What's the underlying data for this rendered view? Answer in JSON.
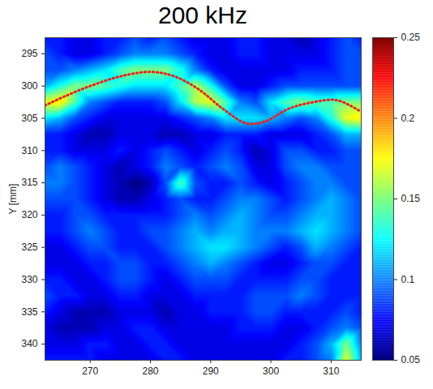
{
  "chart_data": {
    "type": "heatmap",
    "title": "200 kHz",
    "y_label": "Y [mm]",
    "color": "jet",
    "x": [
      262.5,
      265,
      267.5,
      270,
      272.5,
      275,
      277.5,
      280,
      282.5,
      285,
      287.5,
      290,
      292.5,
      295,
      297.5,
      300,
      302.5,
      305,
      307.5,
      310,
      312.5,
      315
    ],
    "y": [
      292.5,
      295,
      297.5,
      300,
      302.5,
      305,
      307.5,
      310,
      312.5,
      315,
      317.5,
      320,
      322.5,
      325,
      327.5,
      330,
      332.5,
      335,
      337.5,
      340,
      342.5
    ],
    "values": [
      [
        0.08,
        0.08,
        0.07,
        0.07,
        0.08,
        0.08,
        0.09,
        0.08,
        0.09,
        0.08,
        0.07,
        0.07,
        0.07,
        0.08,
        0.08,
        0.07,
        0.07,
        0.06,
        0.07,
        0.08,
        0.09,
        0.08
      ],
      [
        0.09,
        0.08,
        0.07,
        0.07,
        0.08,
        0.09,
        0.1,
        0.1,
        0.1,
        0.09,
        0.08,
        0.07,
        0.07,
        0.08,
        0.08,
        0.07,
        0.07,
        0.07,
        0.07,
        0.08,
        0.09,
        0.09
      ],
      [
        0.09,
        0.09,
        0.1,
        0.11,
        0.12,
        0.14,
        0.15,
        0.15,
        0.15,
        0.13,
        0.1,
        0.08,
        0.07,
        0.07,
        0.07,
        0.07,
        0.07,
        0.08,
        0.08,
        0.08,
        0.09,
        0.09
      ],
      [
        0.11,
        0.13,
        0.15,
        0.15,
        0.14,
        0.13,
        0.12,
        0.12,
        0.12,
        0.14,
        0.16,
        0.13,
        0.09,
        0.07,
        0.07,
        0.08,
        0.09,
        0.09,
        0.09,
        0.09,
        0.09,
        0.09
      ],
      [
        0.17,
        0.18,
        0.14,
        0.1,
        0.09,
        0.08,
        0.08,
        0.08,
        0.09,
        0.12,
        0.16,
        0.17,
        0.14,
        0.1,
        0.09,
        0.12,
        0.14,
        0.15,
        0.14,
        0.14,
        0.15,
        0.15
      ],
      [
        0.12,
        0.11,
        0.09,
        0.08,
        0.07,
        0.07,
        0.07,
        0.07,
        0.07,
        0.08,
        0.09,
        0.1,
        0.12,
        0.12,
        0.12,
        0.11,
        0.1,
        0.09,
        0.1,
        0.13,
        0.17,
        0.18
      ],
      [
        0.08,
        0.08,
        0.07,
        0.06,
        0.06,
        0.07,
        0.07,
        0.07,
        0.06,
        0.06,
        0.07,
        0.07,
        0.08,
        0.08,
        0.08,
        0.07,
        0.07,
        0.07,
        0.08,
        0.09,
        0.11,
        0.11
      ],
      [
        0.08,
        0.08,
        0.07,
        0.07,
        0.07,
        0.08,
        0.07,
        0.08,
        0.09,
        0.08,
        0.07,
        0.08,
        0.09,
        0.08,
        0.06,
        0.07,
        0.09,
        0.09,
        0.08,
        0.08,
        0.09,
        0.09
      ],
      [
        0.09,
        0.1,
        0.09,
        0.08,
        0.07,
        0.06,
        0.07,
        0.08,
        0.1,
        0.09,
        0.08,
        0.09,
        0.1,
        0.09,
        0.07,
        0.07,
        0.09,
        0.1,
        0.1,
        0.09,
        0.09,
        0.09
      ],
      [
        0.1,
        0.1,
        0.09,
        0.08,
        0.07,
        0.06,
        0.05,
        0.06,
        0.09,
        0.14,
        0.09,
        0.08,
        0.08,
        0.09,
        0.08,
        0.07,
        0.08,
        0.09,
        0.1,
        0.1,
        0.09,
        0.09
      ],
      [
        0.09,
        0.09,
        0.09,
        0.08,
        0.07,
        0.06,
        0.06,
        0.07,
        0.08,
        0.09,
        0.08,
        0.08,
        0.09,
        0.1,
        0.1,
        0.09,
        0.08,
        0.09,
        0.1,
        0.11,
        0.1,
        0.09
      ],
      [
        0.08,
        0.08,
        0.09,
        0.09,
        0.08,
        0.08,
        0.08,
        0.08,
        0.08,
        0.09,
        0.1,
        0.09,
        0.1,
        0.11,
        0.1,
        0.09,
        0.09,
        0.1,
        0.11,
        0.11,
        0.1,
        0.09
      ],
      [
        0.08,
        0.08,
        0.09,
        0.1,
        0.09,
        0.08,
        0.08,
        0.09,
        0.09,
        0.1,
        0.11,
        0.1,
        0.11,
        0.11,
        0.1,
        0.1,
        0.1,
        0.11,
        0.12,
        0.11,
        0.1,
        0.09
      ],
      [
        0.07,
        0.07,
        0.08,
        0.09,
        0.09,
        0.08,
        0.08,
        0.08,
        0.09,
        0.1,
        0.11,
        0.12,
        0.12,
        0.11,
        0.1,
        0.09,
        0.08,
        0.09,
        0.11,
        0.1,
        0.09,
        0.08
      ],
      [
        0.07,
        0.07,
        0.07,
        0.08,
        0.08,
        0.09,
        0.09,
        0.08,
        0.08,
        0.09,
        0.1,
        0.11,
        0.1,
        0.09,
        0.08,
        0.07,
        0.07,
        0.08,
        0.09,
        0.09,
        0.08,
        0.08
      ],
      [
        0.08,
        0.08,
        0.07,
        0.07,
        0.08,
        0.09,
        0.09,
        0.08,
        0.07,
        0.08,
        0.09,
        0.09,
        0.09,
        0.08,
        0.08,
        0.08,
        0.08,
        0.09,
        0.09,
        0.08,
        0.08,
        0.08
      ],
      [
        0.09,
        0.08,
        0.08,
        0.07,
        0.07,
        0.08,
        0.08,
        0.07,
        0.07,
        0.07,
        0.08,
        0.08,
        0.08,
        0.08,
        0.09,
        0.09,
        0.09,
        0.1,
        0.09,
        0.08,
        0.08,
        0.08
      ],
      [
        0.08,
        0.07,
        0.06,
        0.06,
        0.06,
        0.07,
        0.07,
        0.07,
        0.06,
        0.07,
        0.07,
        0.08,
        0.08,
        0.08,
        0.09,
        0.09,
        0.08,
        0.08,
        0.08,
        0.08,
        0.09,
        0.08
      ],
      [
        0.07,
        0.06,
        0.06,
        0.06,
        0.07,
        0.07,
        0.08,
        0.08,
        0.07,
        0.07,
        0.07,
        0.07,
        0.07,
        0.08,
        0.08,
        0.08,
        0.07,
        0.07,
        0.08,
        0.09,
        0.1,
        0.09
      ],
      [
        0.07,
        0.07,
        0.07,
        0.08,
        0.08,
        0.07,
        0.07,
        0.08,
        0.08,
        0.07,
        0.07,
        0.07,
        0.07,
        0.07,
        0.07,
        0.07,
        0.07,
        0.08,
        0.09,
        0.11,
        0.15,
        0.1
      ],
      [
        0.08,
        0.08,
        0.08,
        0.08,
        0.07,
        0.07,
        0.07,
        0.07,
        0.08,
        0.08,
        0.07,
        0.07,
        0.07,
        0.07,
        0.07,
        0.07,
        0.08,
        0.08,
        0.09,
        0.1,
        0.17,
        0.11
      ]
    ],
    "xlim": [
      262.5,
      315
    ],
    "ylim": [
      292.5,
      342.5
    ],
    "xticks": [
      270,
      280,
      290,
      300,
      310
    ],
    "yticks": [
      295,
      300,
      305,
      310,
      315,
      320,
      325,
      330,
      335,
      340
    ],
    "colorbar": {
      "range": [
        0.05,
        0.25
      ],
      "ticks": [
        0.05,
        0.1,
        0.15,
        0.2,
        0.25
      ]
    },
    "curve": {
      "x": [
        262.5,
        266,
        270,
        275,
        280,
        284,
        288,
        292,
        296,
        299,
        303,
        307,
        311,
        315
      ],
      "y": [
        303,
        301.5,
        300,
        298.5,
        297.8,
        298.5,
        300.5,
        303.5,
        305.8,
        305.5,
        303.5,
        302.5,
        302.2,
        304
      ],
      "color": "#e8231f",
      "line_style": "dotted"
    }
  }
}
